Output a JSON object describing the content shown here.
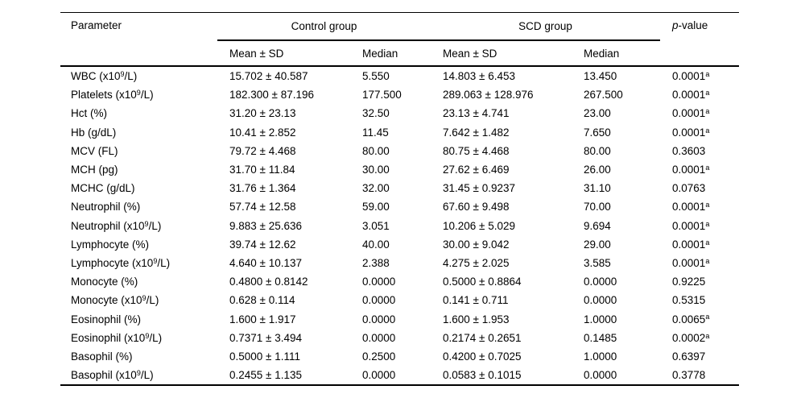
{
  "table": {
    "header": {
      "parameter": "Parameter",
      "control_group": "Control group",
      "scd_group": "SCD group",
      "p_label_italic": "p",
      "p_label_rest": "-value",
      "mean_sd": "Mean ± SD",
      "median": "Median"
    },
    "rows": [
      {
        "parameter": {
          "pre": "WBC (x10",
          "sup": "9",
          "post": "/L)"
        },
        "control_mean_sd": "15.702 ± 40.587",
        "control_median": "5.550",
        "scd_mean_sd": "14.803 ± 6.453",
        "scd_median": "13.450",
        "p_value": "0.0001",
        "p_sup": "a"
      },
      {
        "parameter": {
          "pre": "Platelets (x10",
          "sup": "9",
          "post": "/L)"
        },
        "control_mean_sd": "182.300 ± 87.196",
        "control_median": "177.500",
        "scd_mean_sd": "289.063 ± 128.976",
        "scd_median": "267.500",
        "p_value": "0.0001",
        "p_sup": "a"
      },
      {
        "parameter": {
          "pre": "Hct (%)",
          "sup": "",
          "post": ""
        },
        "control_mean_sd": "31.20 ± 23.13",
        "control_median": "32.50",
        "scd_mean_sd": "23.13 ± 4.741",
        "scd_median": "23.00",
        "p_value": "0.0001",
        "p_sup": "a"
      },
      {
        "parameter": {
          "pre": "Hb (g/dL)",
          "sup": "",
          "post": ""
        },
        "control_mean_sd": "10.41 ± 2.852",
        "control_median": "11.45",
        "scd_mean_sd": "7.642 ± 1.482",
        "scd_median": "7.650",
        "p_value": "0.0001",
        "p_sup": "a"
      },
      {
        "parameter": {
          "pre": "MCV (FL)",
          "sup": "",
          "post": ""
        },
        "control_mean_sd": "79.72 ± 4.468",
        "control_median": "80.00",
        "scd_mean_sd": "80.75 ± 4.468",
        "scd_median": "80.00",
        "p_value": "0.3603",
        "p_sup": ""
      },
      {
        "parameter": {
          "pre": "MCH (pg)",
          "sup": "",
          "post": ""
        },
        "control_mean_sd": "31.70 ± 11.84",
        "control_median": "30.00",
        "scd_mean_sd": "27.62 ± 6.469",
        "scd_median": "26.00",
        "p_value": "0.0001",
        "p_sup": "a"
      },
      {
        "parameter": {
          "pre": "MCHC (g/dL)",
          "sup": "",
          "post": ""
        },
        "control_mean_sd": "31.76 ± 1.364",
        "control_median": "32.00",
        "scd_mean_sd": "31.45 ± 0.9237",
        "scd_median": "31.10",
        "p_value": "0.0763",
        "p_sup": ""
      },
      {
        "parameter": {
          "pre": "Neutrophil (%)",
          "sup": "",
          "post": ""
        },
        "control_mean_sd": "57.74 ± 12.58",
        "control_median": "59.00",
        "scd_mean_sd": "67.60 ± 9.498",
        "scd_median": "70.00",
        "p_value": "0.0001",
        "p_sup": "a"
      },
      {
        "parameter": {
          "pre": "Neutrophil (x10",
          "sup": "9",
          "post": "/L)"
        },
        "control_mean_sd": "9.883 ± 25.636",
        "control_median": "3.051",
        "scd_mean_sd": "10.206 ± 5.029",
        "scd_median": "9.694",
        "p_value": "0.0001",
        "p_sup": "a"
      },
      {
        "parameter": {
          "pre": "Lymphocyte (%)",
          "sup": "",
          "post": ""
        },
        "control_mean_sd": "39.74 ± 12.62",
        "control_median": "40.00",
        "scd_mean_sd": "30.00 ± 9.042",
        "scd_median": "29.00",
        "p_value": "0.0001",
        "p_sup": "a"
      },
      {
        "parameter": {
          "pre": "Lymphocyte (x10",
          "sup": "9",
          "post": "/L)"
        },
        "control_mean_sd": "4.640 ± 10.137",
        "control_median": "2.388",
        "scd_mean_sd": "4.275 ± 2.025",
        "scd_median": "3.585",
        "p_value": "0.0001",
        "p_sup": "a"
      },
      {
        "parameter": {
          "pre": "Monocyte (%)",
          "sup": "",
          "post": ""
        },
        "control_mean_sd": "0.4800 ± 0.8142",
        "control_median": "0.0000",
        "scd_mean_sd": "0.5000 ± 0.8864",
        "scd_median": "0.0000",
        "p_value": "0.9225",
        "p_sup": ""
      },
      {
        "parameter": {
          "pre": "Monocyte (x10",
          "sup": "9",
          "post": "/L)"
        },
        "control_mean_sd": "0.628 ± 0.114",
        "control_median": "0.0000",
        "scd_mean_sd": "0.141 ± 0.711",
        "scd_median": "0.0000",
        "p_value": "0.5315",
        "p_sup": ""
      },
      {
        "parameter": {
          "pre": "Eosinophil (%)",
          "sup": "",
          "post": ""
        },
        "control_mean_sd": "1.600 ± 1.917",
        "control_median": "0.0000",
        "scd_mean_sd": "1.600 ± 1.953",
        "scd_median": "1.0000",
        "p_value": "0.0065",
        "p_sup": "a"
      },
      {
        "parameter": {
          "pre": "Eosinophil (x10",
          "sup": "9",
          "post": "/L)"
        },
        "control_mean_sd": "0.7371 ± 3.494",
        "control_median": "0.0000",
        "scd_mean_sd": "0.2174 ± 0.2651",
        "scd_median": "0.1485",
        "p_value": "0.0002",
        "p_sup": "a"
      },
      {
        "parameter": {
          "pre": "Basophil (%)",
          "sup": "",
          "post": ""
        },
        "control_mean_sd": "0.5000 ± 1.111",
        "control_median": "0.2500",
        "scd_mean_sd": "0.4200 ± 0.7025",
        "scd_median": "1.0000",
        "p_value": "0.6397",
        "p_sup": ""
      },
      {
        "parameter": {
          "pre": "Basophil (x10",
          "sup": "9",
          "post": "/L)"
        },
        "control_mean_sd": "0.2455 ± 1.135",
        "control_median": "0.0000",
        "scd_mean_sd": "0.0583 ± 0.1015",
        "scd_median": "0.0000",
        "p_value": "0.3778",
        "p_sup": ""
      }
    ]
  }
}
